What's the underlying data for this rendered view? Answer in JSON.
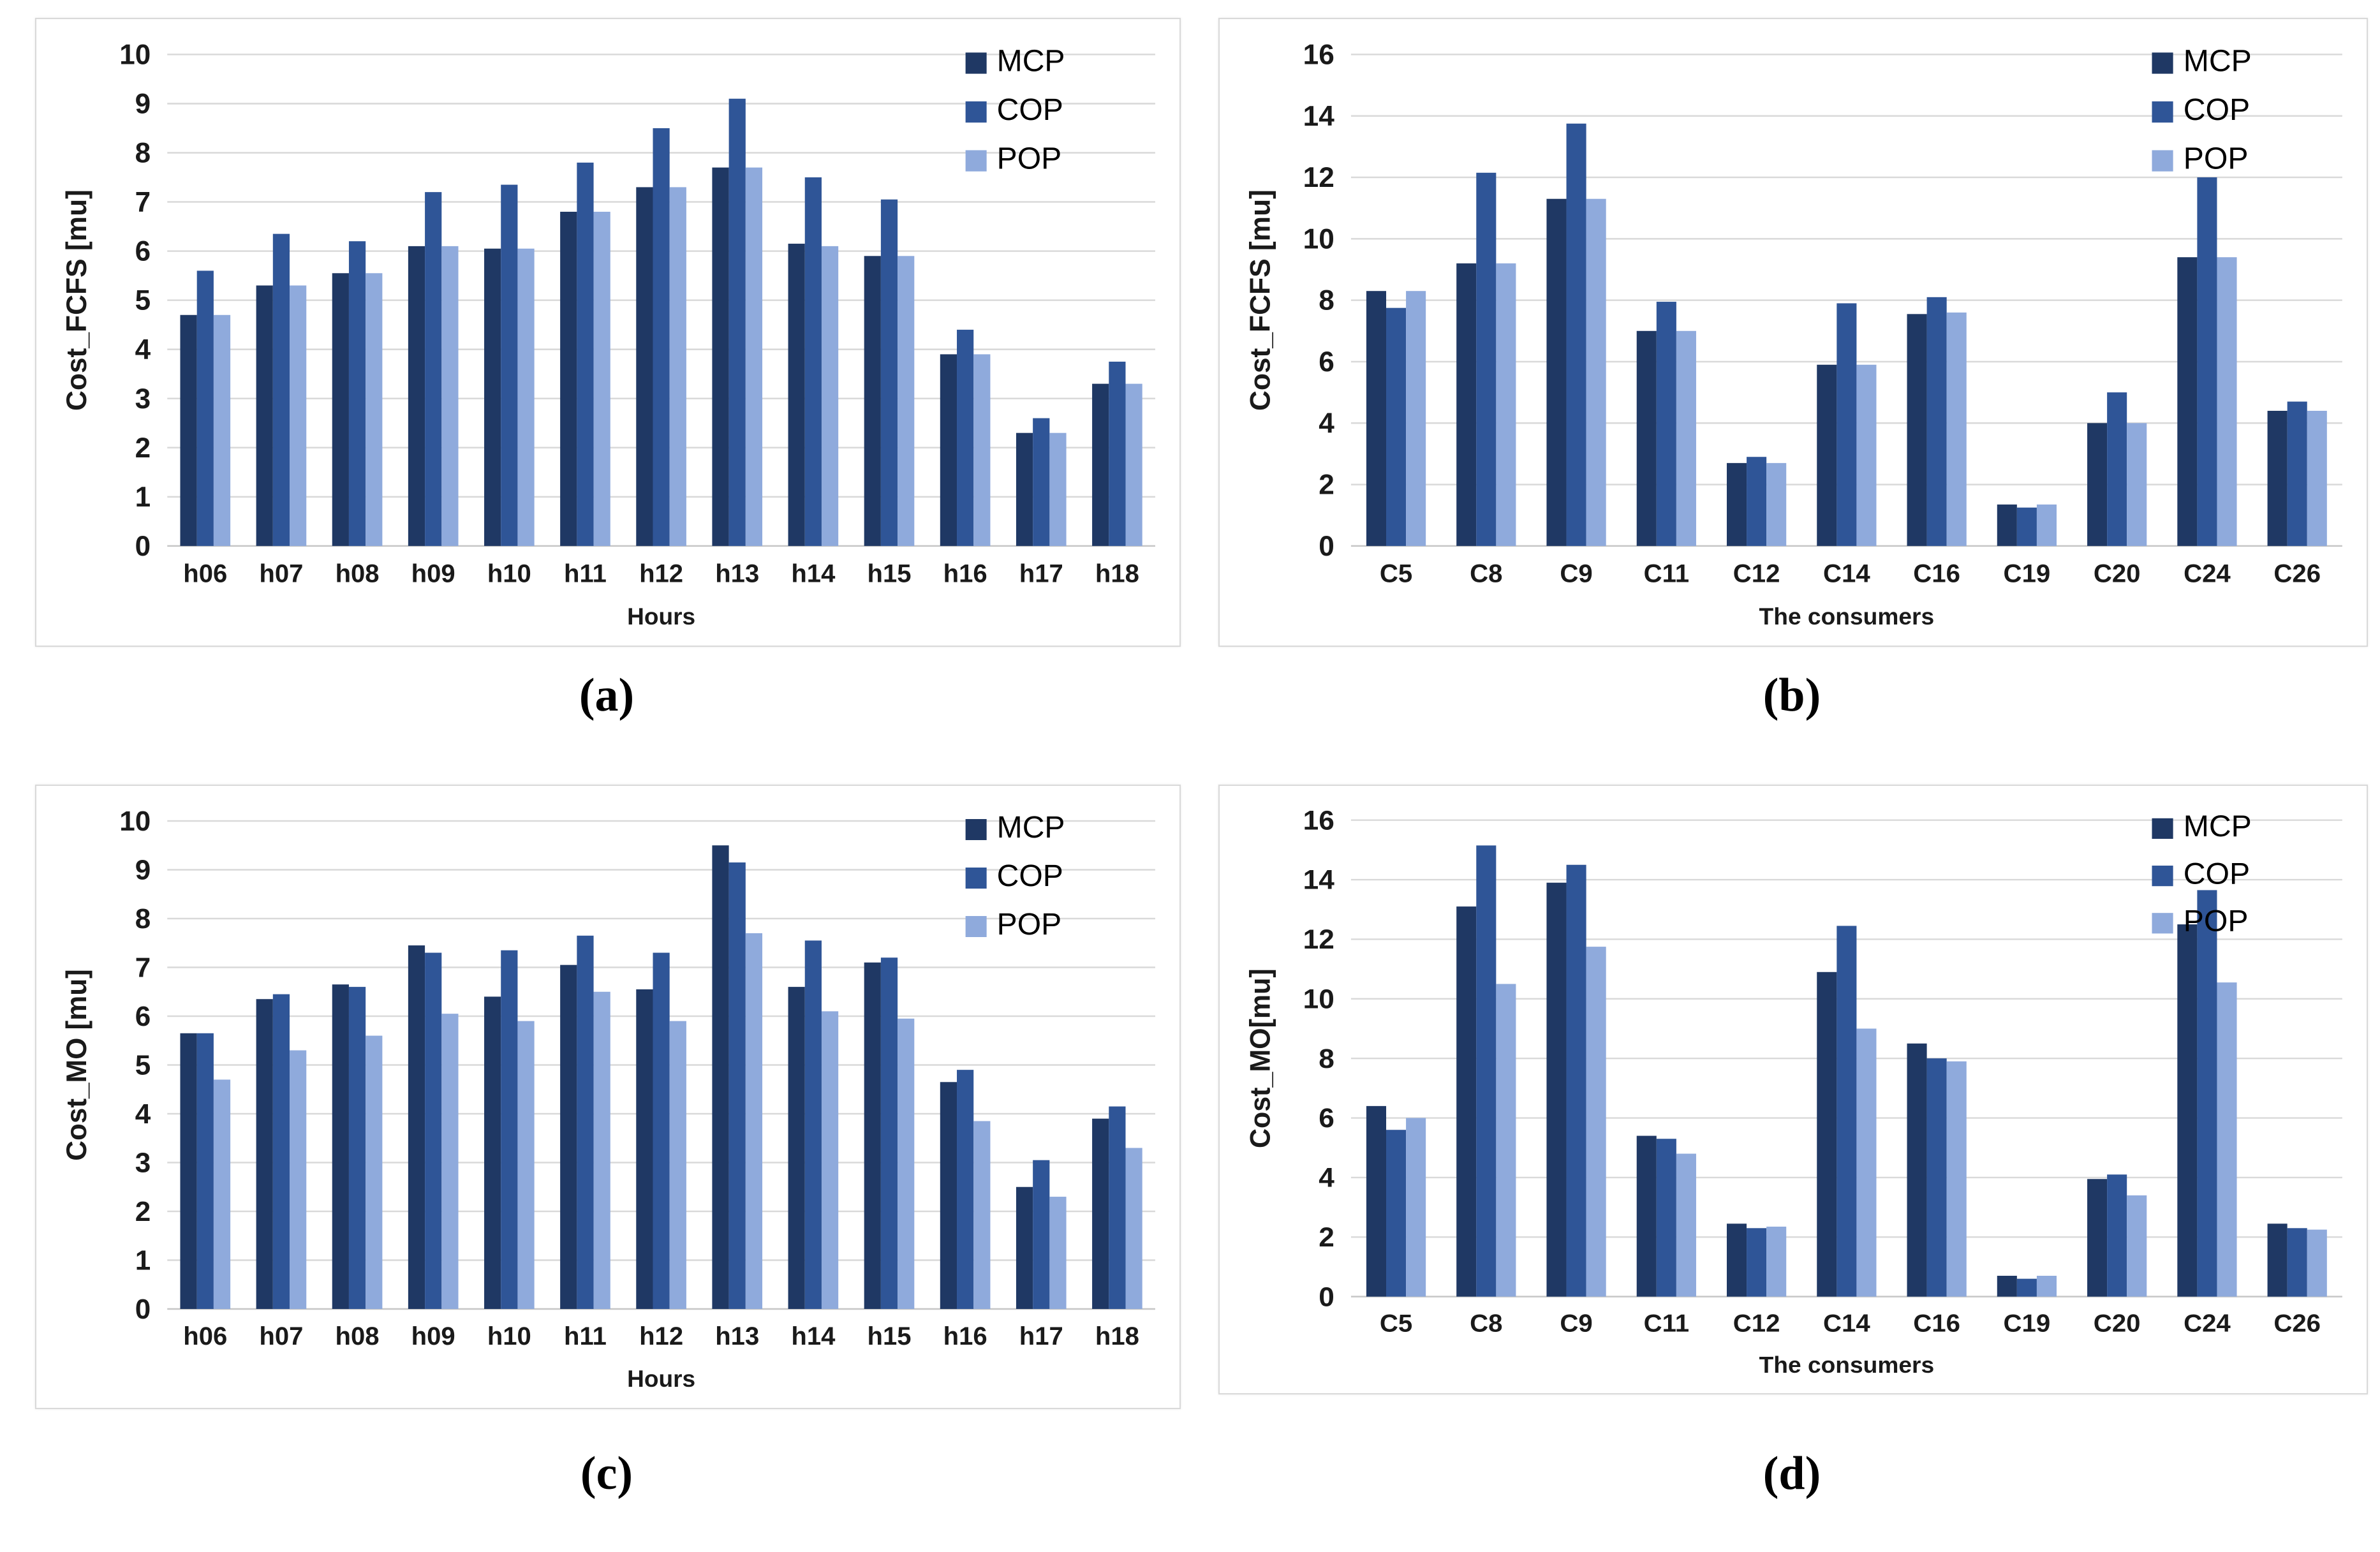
{
  "page": {
    "background": "#ffffff"
  },
  "colors": {
    "MCP": "#1f3864",
    "COP": "#2f5597",
    "POP": "#8faadc",
    "gridline": "#d9d9d9",
    "baseline": "#c6c6c6",
    "axis_text": "#1a1a1a"
  },
  "chart_data": [
    {
      "id": "a",
      "type": "bar",
      "caption": "(a)",
      "title": "",
      "ylabel": "Cost_FCFS [mu]",
      "xlabel": "Hours",
      "ylim": [
        0,
        10
      ],
      "ytick_labels": [
        "0",
        "1",
        "2",
        "3",
        "4",
        "5",
        "6",
        "7",
        "8",
        "9",
        "10"
      ],
      "grid": true,
      "legend_position": "top-right",
      "categories": [
        "h06",
        "h07",
        "h08",
        "h09",
        "h10",
        "h11",
        "h12",
        "h13",
        "h14",
        "h15",
        "h16",
        "h17",
        "h18"
      ],
      "series": [
        {
          "name": "MCP",
          "values": [
            4.7,
            5.3,
            5.55,
            6.1,
            6.05,
            6.8,
            7.3,
            7.7,
            6.15,
            5.9,
            3.9,
            2.3,
            3.3
          ]
        },
        {
          "name": "COP",
          "values": [
            5.6,
            6.35,
            6.2,
            7.2,
            7.35,
            7.8,
            8.5,
            9.1,
            7.5,
            7.05,
            4.4,
            2.6,
            3.75
          ]
        },
        {
          "name": "POP",
          "values": [
            4.7,
            5.3,
            5.55,
            6.1,
            6.05,
            6.8,
            7.3,
            7.7,
            6.1,
            5.9,
            3.9,
            2.3,
            3.3
          ]
        }
      ]
    },
    {
      "id": "b",
      "type": "bar",
      "caption": "(b)",
      "title": "",
      "ylabel": "Cost_FCFS [mu]",
      "xlabel": "The consumers",
      "ylim": [
        0,
        16
      ],
      "ytick_labels": [
        "0",
        "2",
        "4",
        "6",
        "8",
        "10",
        "12",
        "14",
        "16"
      ],
      "grid": true,
      "legend_position": "top-right",
      "categories": [
        "C5",
        "C8",
        "C9",
        "C11",
        "C12",
        "C14",
        "C16",
        "C19",
        "C20",
        "C24",
        "C26"
      ],
      "series": [
        {
          "name": "MCP",
          "values": [
            8.3,
            9.2,
            11.3,
            7.0,
            2.7,
            5.9,
            7.55,
            1.35,
            4.0,
            9.4,
            4.4
          ]
        },
        {
          "name": "COP",
          "values": [
            7.75,
            12.15,
            13.75,
            7.95,
            2.9,
            7.9,
            8.1,
            1.25,
            5.0,
            12.0,
            4.7
          ]
        },
        {
          "name": "POP",
          "values": [
            8.3,
            9.2,
            11.3,
            7.0,
            2.7,
            5.9,
            7.6,
            1.35,
            4.0,
            9.4,
            4.4
          ]
        }
      ]
    },
    {
      "id": "c",
      "type": "bar",
      "caption": "(c)",
      "title": "",
      "ylabel": "Cost_MO [mu]",
      "xlabel": "Hours",
      "ylim": [
        0,
        10
      ],
      "ytick_labels": [
        "0",
        "1",
        "2",
        "3",
        "4",
        "5",
        "6",
        "7",
        "8",
        "9",
        "10"
      ],
      "grid": true,
      "legend_position": "top-right",
      "categories": [
        "h06",
        "h07",
        "h08",
        "h09",
        "h10",
        "h11",
        "h12",
        "h13",
        "h14",
        "h15",
        "h16",
        "h17",
        "h18"
      ],
      "series": [
        {
          "name": "MCP",
          "values": [
            5.65,
            6.35,
            6.65,
            7.45,
            6.4,
            7.05,
            6.55,
            9.5,
            6.6,
            7.1,
            4.65,
            2.5,
            3.9
          ]
        },
        {
          "name": "COP",
          "values": [
            5.65,
            6.45,
            6.6,
            7.3,
            7.35,
            7.65,
            7.3,
            9.15,
            7.55,
            7.2,
            4.9,
            3.05,
            4.15
          ]
        },
        {
          "name": "POP",
          "values": [
            4.7,
            5.3,
            5.6,
            6.05,
            5.9,
            6.5,
            5.9,
            7.7,
            6.1,
            5.95,
            3.85,
            2.3,
            3.3
          ]
        }
      ]
    },
    {
      "id": "d",
      "type": "bar",
      "caption": "(d)",
      "title": "",
      "ylabel": "Cost_MO[mu]",
      "xlabel": "The consumers",
      "ylim": [
        0,
        16
      ],
      "ytick_labels": [
        "0",
        "2",
        "4",
        "6",
        "8",
        "10",
        "12",
        "14",
        "16"
      ],
      "grid": true,
      "legend_position": "top-right",
      "categories": [
        "C5",
        "C8",
        "C9",
        "C11",
        "C12",
        "C14",
        "C16",
        "C19",
        "C20",
        "C24",
        "C26"
      ],
      "series": [
        {
          "name": "MCP",
          "values": [
            6.4,
            13.1,
            13.9,
            5.4,
            2.45,
            10.9,
            8.5,
            0.7,
            3.95,
            12.5,
            2.45
          ]
        },
        {
          "name": "COP",
          "values": [
            5.6,
            15.15,
            14.5,
            5.3,
            2.3,
            12.45,
            8.0,
            0.6,
            4.1,
            13.65,
            2.3
          ]
        },
        {
          "name": "POP",
          "values": [
            6.0,
            10.5,
            11.75,
            4.8,
            2.35,
            9.0,
            7.9,
            0.7,
            3.4,
            10.55,
            2.25
          ]
        }
      ]
    }
  ]
}
